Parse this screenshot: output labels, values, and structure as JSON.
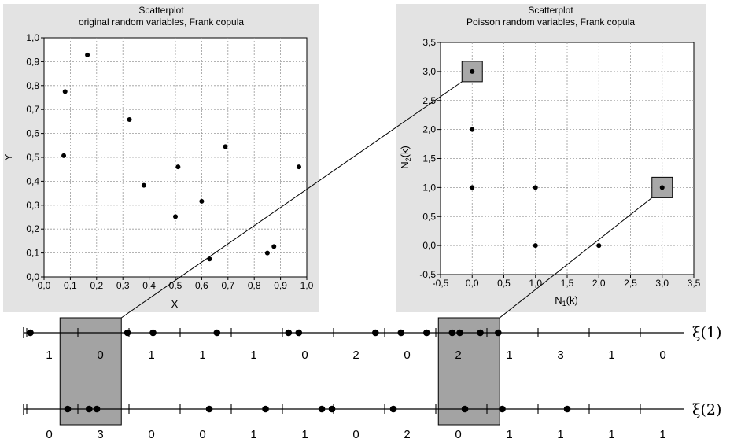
{
  "chart_data": [
    {
      "type": "scatter",
      "title": "Scatterplot",
      "subtitle": "original random variables, Frank copula",
      "xlabel": "X",
      "ylabel": "Y",
      "xlim": [
        0,
        1
      ],
      "ylim": [
        0,
        1
      ],
      "xticks": [
        "0,0",
        "0,1",
        "0,2",
        "0,3",
        "0,4",
        "0,5",
        "0,6",
        "0,7",
        "0,8",
        "0,9",
        "1,0"
      ],
      "yticks": [
        "0,0",
        "0,1",
        "0,2",
        "0,3",
        "0,4",
        "0,5",
        "0,6",
        "0,7",
        "0,8",
        "0,9",
        "1,0"
      ],
      "grid": true,
      "points": [
        [
          0.08,
          0.775
        ],
        [
          0.165,
          0.928
        ],
        [
          0.075,
          0.507
        ],
        [
          0.325,
          0.658
        ],
        [
          0.38,
          0.383
        ],
        [
          0.51,
          0.46
        ],
        [
          0.5,
          0.252
        ],
        [
          0.6,
          0.316
        ],
        [
          0.69,
          0.545
        ],
        [
          0.63,
          0.075
        ],
        [
          0.85,
          0.1
        ],
        [
          0.875,
          0.127
        ],
        [
          0.97,
          0.46
        ]
      ]
    },
    {
      "type": "scatter",
      "title": "Scatterplot",
      "subtitle": "Poisson random variables, Frank copula",
      "xlabel_base": "N",
      "xlabel_sub": "1",
      "xlabel_tail": "(k)",
      "ylabel_base": "N",
      "ylabel_sub": "2",
      "ylabel_tail": "(k)",
      "xlim": [
        -0.5,
        3.5
      ],
      "ylim": [
        -0.5,
        3.5
      ],
      "xticks": [
        "-0,5",
        "0,0",
        "0,5",
        "1,0",
        "1,5",
        "2,0",
        "2,5",
        "3,0",
        "3,5"
      ],
      "yticks": [
        "-0,5",
        "0,0",
        "0,5",
        "1,0",
        "1,5",
        "2,0",
        "2,5",
        "3,0",
        "3,5"
      ],
      "grid": true,
      "points": [
        [
          0,
          3
        ],
        [
          0,
          2
        ],
        [
          0,
          1
        ],
        [
          1,
          1
        ],
        [
          1,
          0
        ],
        [
          2,
          0
        ],
        [
          3,
          1
        ]
      ],
      "highlighted": [
        [
          0,
          3
        ],
        [
          3,
          1
        ]
      ]
    },
    {
      "type": "timeline",
      "rows": [
        {
          "label": "ξ(1)",
          "intervals": 12,
          "points": [
            0.07,
            1.97,
            2.47,
            3.72,
            5.12,
            5.32,
            6.82,
            7.32,
            7.82,
            8.32,
            8.47,
            8.87,
            9.22
          ],
          "counts": [
            "1",
            "0",
            "1",
            "1",
            "1",
            "0",
            "2",
            "0",
            "2",
            "1",
            "3",
            "1",
            "0"
          ]
        },
        {
          "label": "ξ(2)",
          "intervals": 12,
          "points": [
            0.8,
            1.22,
            1.37,
            3.57,
            4.67,
            5.77,
            5.97,
            7.17,
            8.57,
            9.3,
            10.57
          ],
          "counts": [
            "0",
            "3",
            "0",
            "0",
            "1",
            "1",
            "0",
            "2",
            "0",
            "1",
            "1",
            "1",
            "1"
          ]
        }
      ],
      "highlight_intervals": [
        [
          0.65,
          1.85
        ],
        [
          8.05,
          9.25
        ]
      ]
    }
  ]
}
